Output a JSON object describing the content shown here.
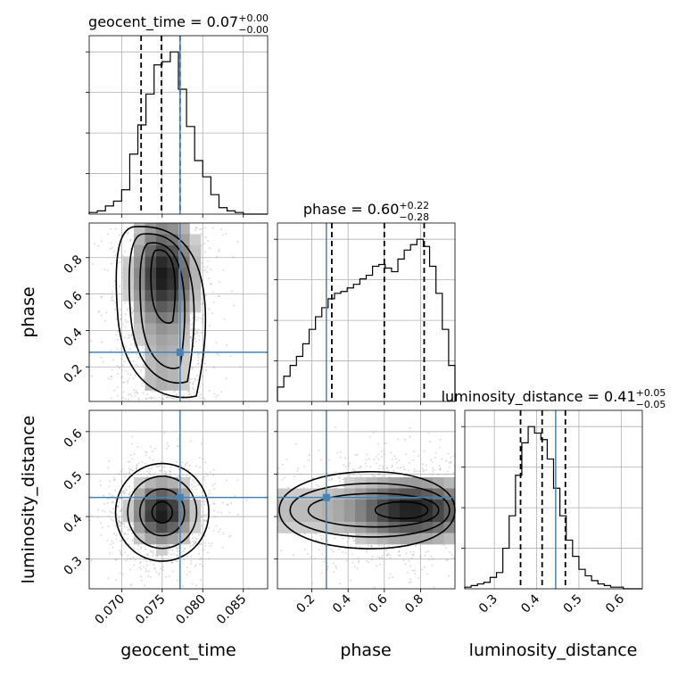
{
  "chart_data": {
    "type": "corner",
    "parameters": [
      "geocent_time",
      "phase",
      "luminosity_distance"
    ],
    "truth_color": "#4682b4",
    "truths": {
      "geocent_time": 0.0772,
      "phase": 0.28,
      "luminosity_distance": 0.445
    },
    "ranges": {
      "geocent_time": [
        0.066,
        0.088
      ],
      "phase": [
        0.01,
        0.99
      ],
      "luminosity_distance": [
        0.23,
        0.65
      ]
    },
    "ticks": {
      "geocent_time": {
        "values": [
          0.07,
          0.075,
          0.08,
          0.085
        ],
        "labels": [
          "0.070",
          "0.075",
          "0.080",
          "0.085"
        ]
      },
      "phase": {
        "values": [
          0.2,
          0.4,
          0.6,
          0.8
        ],
        "labels": [
          "0.2",
          "0.4",
          "0.6",
          "0.8"
        ]
      },
      "luminosity_distance": {
        "values": [
          0.3,
          0.4,
          0.5,
          0.6
        ],
        "labels": [
          "0.3",
          "0.4",
          "0.5",
          "0.6"
        ]
      }
    },
    "quantiles": {
      "geocent_time": [
        0.0724,
        0.0749,
        0.0772
      ],
      "phase": [
        0.31,
        0.6,
        0.82
      ],
      "luminosity_distance": [
        0.362,
        0.413,
        0.468
      ]
    },
    "titles": [
      {
        "param": "geocent_time",
        "text": "geocent_time = 0.07",
        "sup": "+0.00",
        "sub": "−0.00"
      },
      {
        "param": "phase",
        "text": "phase = 0.60",
        "sup": "+0.22",
        "sub": "−0.28"
      },
      {
        "param": "luminosity_distance",
        "text": "luminosity_distance = 0.41",
        "sup": "+0.05",
        "sub": "−0.05"
      }
    ],
    "histograms": {
      "geocent_time": {
        "edges": [
          0.066,
          0.067,
          0.068,
          0.069,
          0.07,
          0.071,
          0.072,
          0.073,
          0.074,
          0.075,
          0.076,
          0.077,
          0.078,
          0.079,
          0.08,
          0.081,
          0.082,
          0.083,
          0.084,
          0.085,
          0.086,
          0.087,
          0.088
        ],
        "counts": [
          1,
          2,
          5,
          8,
          15,
          37,
          55,
          74,
          92,
          94,
          100,
          77,
          54,
          33,
          23,
          12,
          4,
          2,
          1,
          0,
          0,
          0
        ]
      },
      "phase": {
        "edges": [
          0.01,
          0.045,
          0.08,
          0.115,
          0.15,
          0.185,
          0.22,
          0.255,
          0.29,
          0.325,
          0.36,
          0.395,
          0.43,
          0.465,
          0.5,
          0.535,
          0.57,
          0.605,
          0.64,
          0.675,
          0.71,
          0.745,
          0.78,
          0.815,
          0.85,
          0.885,
          0.92,
          0.955,
          0.99
        ],
        "counts": [
          8,
          14,
          20,
          25,
          32,
          40,
          47,
          52,
          57,
          60,
          61,
          63,
          65,
          68,
          70,
          75,
          76,
          74,
          72,
          79,
          84,
          87,
          90,
          86,
          75,
          60,
          40,
          20
        ]
      },
      "luminosity_distance": {
        "edges": [
          0.23,
          0.245,
          0.26,
          0.275,
          0.29,
          0.305,
          0.32,
          0.335,
          0.35,
          0.365,
          0.38,
          0.395,
          0.41,
          0.425,
          0.44,
          0.455,
          0.47,
          0.485,
          0.5,
          0.515,
          0.53,
          0.545,
          0.56,
          0.575,
          0.59,
          0.605,
          0.62,
          0.635,
          0.65
        ],
        "counts": [
          1,
          2,
          3,
          4,
          7,
          10,
          25,
          45,
          70,
          90,
          100,
          96,
          92,
          80,
          62,
          45,
          30,
          20,
          12,
          8,
          5,
          3,
          2,
          1,
          1,
          0,
          0,
          0
        ]
      }
    },
    "posterior_2d": {
      "phase_vs_geocent_time": {
        "center": [
          0.0752,
          0.6
        ],
        "spread": [
          0.0026,
          0.22
        ],
        "modes": [
          {
            "x": 0.0752,
            "y": 0.78
          },
          {
            "x": 0.0748,
            "y": 0.62
          }
        ]
      },
      "luminosity_distance_vs_geocent_time": {
        "center": [
          0.075,
          0.41
        ],
        "spread": [
          0.0025,
          0.05
        ]
      },
      "luminosity_distance_vs_phase": {
        "center": [
          0.62,
          0.415
        ],
        "spread": [
          0.25,
          0.05
        ],
        "modes": [
          {
            "x": 0.78,
            "y": 0.41
          },
          {
            "x": 0.45,
            "y": 0.42
          }
        ]
      }
    }
  }
}
